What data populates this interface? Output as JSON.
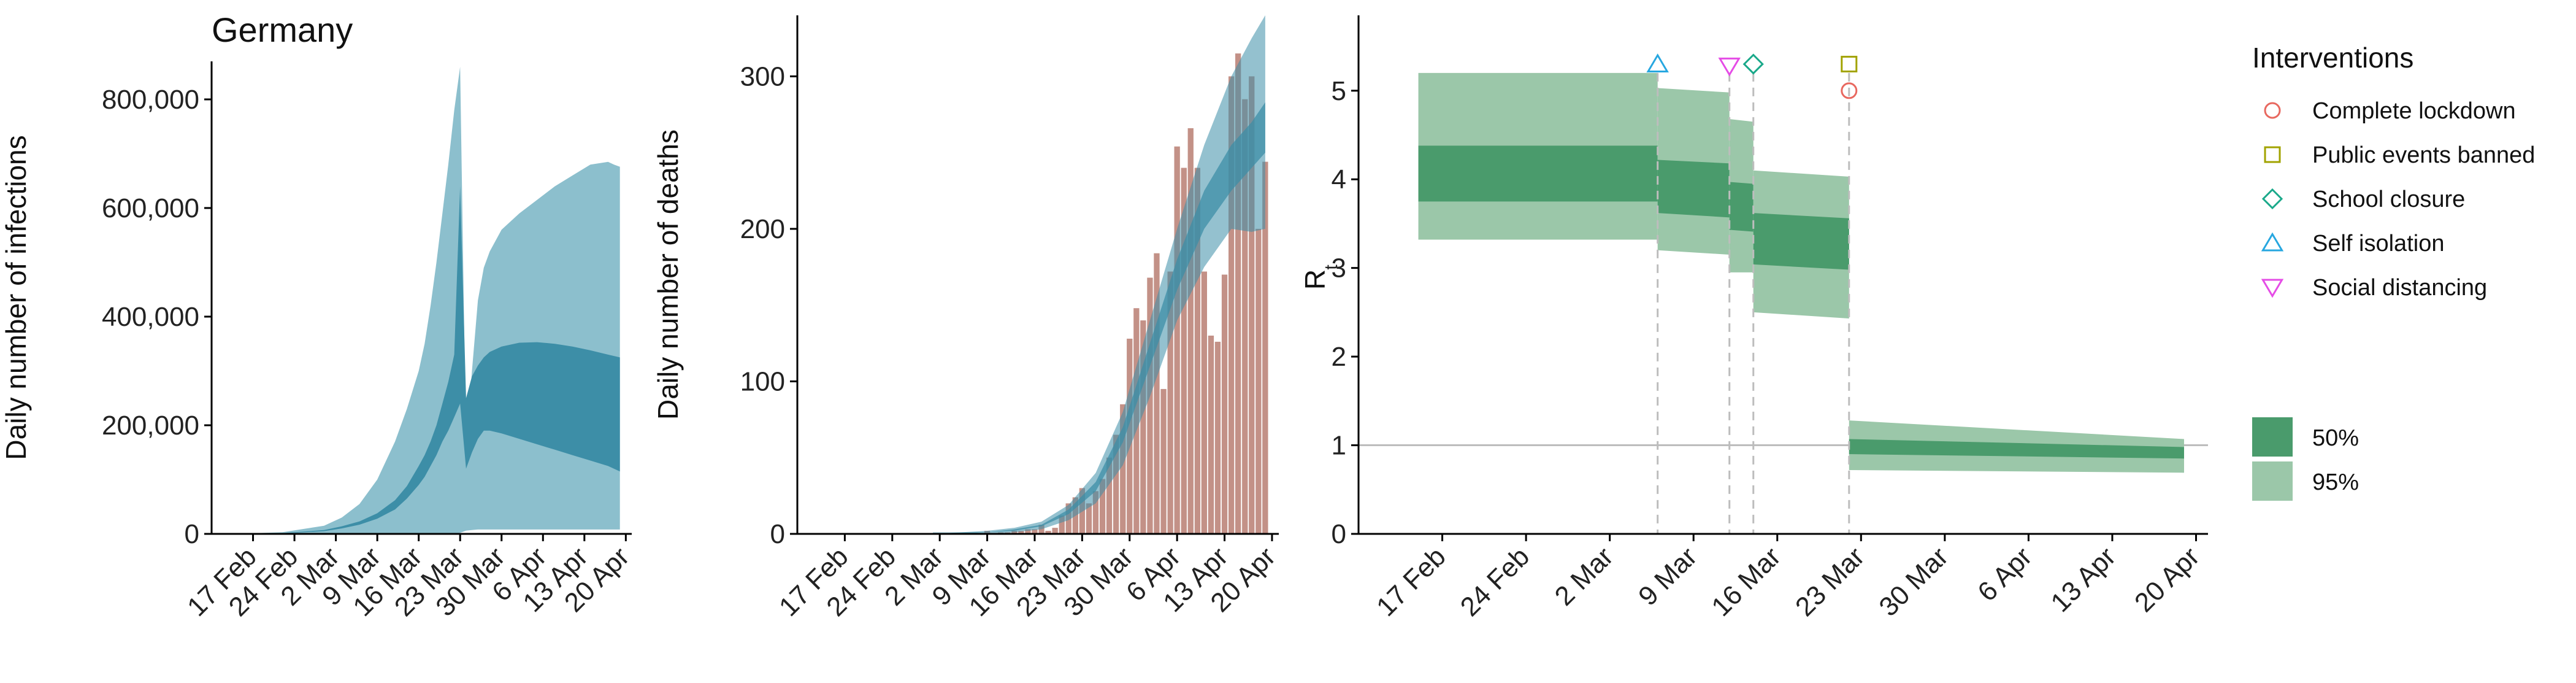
{
  "figure_title": "Germany",
  "colors": {
    "infection_95": "#8cbfcd",
    "infection_50": "#3d8ea7",
    "deaths_obs": "#c39187",
    "rt_95": "#9bc7a9",
    "rt_50": "#4a9b6c",
    "refline": "#bdbdbd",
    "lockdown": "#e8685f",
    "public_events": "#a2a300",
    "school": "#1aa98a",
    "self_isolation": "#27a7e0",
    "social_distancing": "#e54ce6"
  },
  "chart_data": [
    {
      "type": "area",
      "title": "Germany",
      "xlabel": "",
      "ylabel": "Daily number of infections",
      "x_ticks": [
        "17 Feb",
        "24 Feb",
        "2 Mar",
        "9 Mar",
        "16 Mar",
        "23 Mar",
        "30 Mar",
        "6 Apr",
        "13 Apr",
        "20 Apr"
      ],
      "y_ticks": [
        "0",
        "200,000",
        "400,000",
        "600,000",
        "800,000"
      ],
      "y_tick_values": [
        0,
        200000,
        400000,
        600000,
        800000
      ],
      "xlim": [
        "2020-02-10",
        "2020-04-21"
      ],
      "ylim": [
        0,
        870000
      ],
      "grid": false,
      "series": [
        {
          "band": "95",
          "x": [
            "2020-02-15",
            "2020-02-22",
            "2020-02-29",
            "2020-03-03",
            "2020-03-06",
            "2020-03-09",
            "2020-03-12",
            "2020-03-14",
            "2020-03-16",
            "2020-03-17",
            "2020-03-18",
            "2020-03-19",
            "2020-03-20",
            "2020-03-21",
            "2020-03-22",
            "2020-03-23",
            "2020-03-24",
            "2020-03-25",
            "2020-03-26",
            "2020-03-27",
            "2020-03-28",
            "2020-03-30",
            "2020-04-02",
            "2020-04-05",
            "2020-04-08",
            "2020-04-11",
            "2020-04-14",
            "2020-04-17",
            "2020-04-18",
            "2020-04-19"
          ],
          "lower": [
            0,
            0,
            0,
            0,
            0,
            0,
            0,
            0,
            0,
            0,
            0,
            0,
            0,
            0,
            0,
            2000,
            6000,
            7000,
            8000,
            8000,
            8000,
            8000,
            8000,
            8000,
            8000,
            8000,
            8000,
            8000,
            8000,
            8000
          ],
          "upper": [
            500,
            3000,
            15000,
            30000,
            55000,
            100000,
            170000,
            230000,
            300000,
            350000,
            420000,
            500000,
            590000,
            680000,
            780000,
            860000,
            150000,
            300000,
            430000,
            490000,
            520000,
            560000,
            590000,
            615000,
            640000,
            660000,
            680000,
            685000,
            680000,
            676000
          ]
        },
        {
          "band": "50",
          "x": [
            "2020-02-22",
            "2020-02-29",
            "2020-03-03",
            "2020-03-06",
            "2020-03-09",
            "2020-03-12",
            "2020-03-14",
            "2020-03-16",
            "2020-03-17",
            "2020-03-18",
            "2020-03-19",
            "2020-03-20",
            "2020-03-21",
            "2020-03-22",
            "2020-03-23",
            "2020-03-24",
            "2020-03-25",
            "2020-03-26",
            "2020-03-27",
            "2020-03-28",
            "2020-03-30",
            "2020-04-02",
            "2020-04-05",
            "2020-04-08",
            "2020-04-11",
            "2020-04-14",
            "2020-04-17",
            "2020-04-19"
          ],
          "lower": [
            800,
            5000,
            10000,
            17000,
            28000,
            45000,
            65000,
            90000,
            105000,
            125000,
            145000,
            170000,
            190000,
            215000,
            240000,
            120000,
            150000,
            175000,
            190000,
            190000,
            185000,
            175000,
            165000,
            155000,
            145000,
            135000,
            125000,
            115000
          ],
          "upper": [
            1500,
            7000,
            14000,
            23000,
            38000,
            62000,
            88000,
            125000,
            145000,
            170000,
            200000,
            240000,
            280000,
            330000,
            640000,
            250000,
            290000,
            310000,
            325000,
            335000,
            345000,
            352000,
            353000,
            350000,
            345000,
            338000,
            330000,
            325000
          ]
        }
      ]
    },
    {
      "type": "bar",
      "title": "",
      "xlabel": "",
      "ylabel": "Daily number of deaths",
      "x_ticks": [
        "17 Feb",
        "24 Feb",
        "2 Mar",
        "9 Mar",
        "16 Mar",
        "23 Mar",
        "30 Mar",
        "6 Apr",
        "13 Apr",
        "20 Apr"
      ],
      "y_ticks": [
        "0",
        "100",
        "200",
        "300"
      ],
      "y_tick_values": [
        0,
        100,
        200,
        300
      ],
      "xlim": [
        "2020-02-10",
        "2020-04-21"
      ],
      "ylim": [
        0,
        340
      ],
      "grid": false,
      "observed": {
        "x": [
          "2020-03-09",
          "2020-03-10",
          "2020-03-11",
          "2020-03-12",
          "2020-03-13",
          "2020-03-14",
          "2020-03-15",
          "2020-03-16",
          "2020-03-17",
          "2020-03-18",
          "2020-03-19",
          "2020-03-20",
          "2020-03-21",
          "2020-03-22",
          "2020-03-23",
          "2020-03-24",
          "2020-03-25",
          "2020-03-26",
          "2020-03-27",
          "2020-03-28",
          "2020-03-29",
          "2020-03-30",
          "2020-03-31",
          "2020-04-01",
          "2020-04-02",
          "2020-04-03",
          "2020-04-04",
          "2020-04-05",
          "2020-04-06",
          "2020-04-07",
          "2020-04-08",
          "2020-04-09",
          "2020-04-10",
          "2020-04-11",
          "2020-04-12",
          "2020-04-13",
          "2020-04-14",
          "2020-04-15",
          "2020-04-16",
          "2020-04-17",
          "2020-04-18",
          "2020-04-19"
        ],
        "values": [
          2,
          0,
          1,
          1,
          2,
          2,
          3,
          3,
          6,
          2,
          4,
          12,
          20,
          24,
          30,
          20,
          28,
          36,
          50,
          65,
          85,
          128,
          148,
          140,
          168,
          184,
          95,
          172,
          254,
          240,
          266,
          240,
          172,
          130,
          126,
          170,
          300,
          315,
          285,
          300,
          200,
          244
        ]
      },
      "series": [
        {
          "band": "95",
          "x": [
            "2020-03-01",
            "2020-03-05",
            "2020-03-09",
            "2020-03-13",
            "2020-03-17",
            "2020-03-21",
            "2020-03-25",
            "2020-03-29",
            "2020-04-02",
            "2020-04-06",
            "2020-04-10",
            "2020-04-14",
            "2020-04-17",
            "2020-04-19"
          ],
          "lower": [
            0,
            0,
            0,
            1,
            3,
            9,
            20,
            45,
            90,
            140,
            175,
            200,
            198,
            200
          ],
          "upper": [
            1,
            1,
            2,
            4,
            8,
            19,
            40,
            80,
            140,
            200,
            255,
            300,
            325,
            340
          ]
        },
        {
          "band": "50",
          "x": [
            "2020-03-01",
            "2020-03-05",
            "2020-03-09",
            "2020-03-13",
            "2020-03-17",
            "2020-03-21",
            "2020-03-25",
            "2020-03-29",
            "2020-04-02",
            "2020-04-06",
            "2020-04-10",
            "2020-04-14",
            "2020-04-17",
            "2020-04-19"
          ],
          "lower": [
            0,
            0,
            1,
            2,
            5,
            13,
            28,
            60,
            110,
            160,
            200,
            225,
            240,
            250
          ],
          "upper": [
            0,
            1,
            1,
            3,
            6,
            16,
            34,
            70,
            125,
            180,
            225,
            255,
            270,
            283
          ]
        }
      ]
    },
    {
      "type": "step-band",
      "title": "",
      "xlabel": "",
      "ylabel": "R",
      "ylabel_subscript": "t",
      "x_ticks": [
        "17 Feb",
        "24 Feb",
        "2 Mar",
        "9 Mar",
        "16 Mar",
        "23 Mar",
        "30 Mar",
        "6 Apr",
        "13 Apr",
        "20 Apr"
      ],
      "y_ticks": [
        "0",
        "1",
        "2",
        "3",
        "4",
        "5"
      ],
      "y_tick_values": [
        0,
        1,
        2,
        3,
        4,
        5
      ],
      "xlim": [
        "2020-02-10",
        "2020-04-21"
      ],
      "ylim": [
        0,
        5.85
      ],
      "reference_line": 1,
      "grid": false,
      "segments": [
        {
          "from": "2020-02-15",
          "to": "2020-03-06",
          "lo95_from": 3.32,
          "lo95_to": 3.32,
          "hi95_from": 5.2,
          "hi95_to": 5.2,
          "lo50_from": 3.75,
          "lo50_to": 3.75,
          "hi50_from": 4.38,
          "hi50_to": 4.38
        },
        {
          "from": "2020-03-06",
          "to": "2020-03-12",
          "lo95_from": 3.2,
          "lo95_to": 3.15,
          "hi95_from": 5.03,
          "hi95_to": 4.98,
          "lo50_from": 3.62,
          "lo50_to": 3.57,
          "hi50_from": 4.22,
          "hi50_to": 4.18
        },
        {
          "from": "2020-03-12",
          "to": "2020-03-14",
          "lo95_from": 2.95,
          "lo95_to": 2.95,
          "hi95_from": 4.68,
          "hi95_to": 4.65,
          "lo50_from": 3.43,
          "lo50_to": 3.41,
          "hi50_from": 3.97,
          "hi50_to": 3.95
        },
        {
          "from": "2020-03-14",
          "to": "2020-03-22",
          "lo95_from": 2.5,
          "lo95_to": 2.43,
          "hi95_from": 4.1,
          "hi95_to": 4.03,
          "lo50_from": 3.04,
          "lo50_to": 2.98,
          "hi50_from": 3.62,
          "hi50_to": 3.56
        },
        {
          "from": "2020-03-22",
          "to": "2020-04-19",
          "lo95_from": 0.72,
          "lo95_to": 0.69,
          "hi95_from": 1.28,
          "hi95_to": 1.07,
          "lo50_from": 0.9,
          "lo50_to": 0.85,
          "hi50_from": 1.07,
          "hi50_to": 0.98
        }
      ],
      "interventions": [
        {
          "name": "Self isolation",
          "date": "2020-03-06",
          "marker": "triangle-up",
          "y": 5.3
        },
        {
          "name": "Social distancing",
          "date": "2020-03-12",
          "marker": "triangle-down",
          "y": 5.28
        },
        {
          "name": "School closure",
          "date": "2020-03-14",
          "marker": "diamond",
          "y": 5.3
        },
        {
          "name": "Public events banned",
          "date": "2020-03-22",
          "marker": "square",
          "y": 5.3
        },
        {
          "name": "Complete lockdown",
          "date": "2020-03-22",
          "marker": "circle",
          "y": 5.0
        }
      ],
      "legend": {
        "title": "Interventions",
        "placement": "right",
        "items": [
          {
            "label": "Complete lockdown",
            "marker": "circle",
            "color_key": "lockdown"
          },
          {
            "label": "Public events banned",
            "marker": "square",
            "color_key": "public_events"
          },
          {
            "label": "School closure",
            "marker": "diamond",
            "color_key": "school"
          },
          {
            "label": "Self isolation",
            "marker": "triangle-up",
            "color_key": "self_isolation"
          },
          {
            "label": "Social distancing",
            "marker": "triangle-down",
            "color_key": "social_distancing"
          }
        ],
        "bands": [
          {
            "label": "50%",
            "color_key": "rt_50"
          },
          {
            "label": "95%",
            "color_key": "rt_95"
          }
        ]
      }
    }
  ]
}
